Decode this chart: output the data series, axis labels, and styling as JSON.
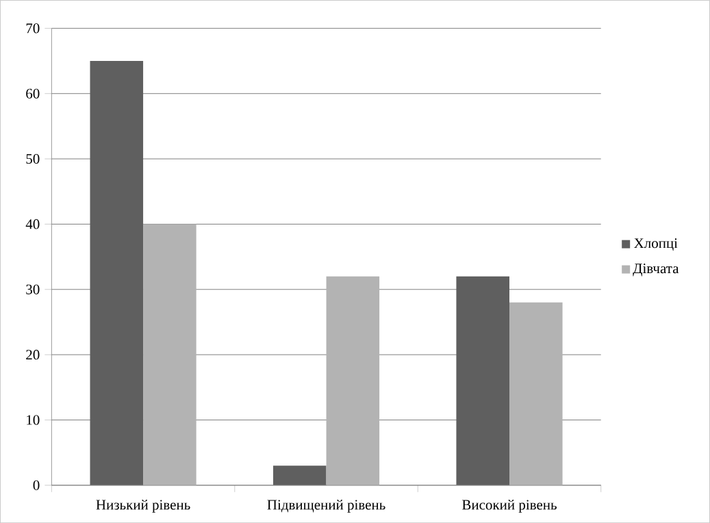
{
  "chart_data": {
    "type": "bar",
    "categories": [
      "Низький рівень",
      "Підвищений рівень",
      "Високий рівень"
    ],
    "series": [
      {
        "name": "Хлопці",
        "color": "#5f5f5f",
        "values": [
          65,
          3,
          32
        ]
      },
      {
        "name": "Дівчата",
        "color": "#b3b3b3",
        "values": [
          40,
          32,
          28
        ]
      }
    ],
    "ylim": [
      0,
      70
    ],
    "yticks": [
      0,
      10,
      20,
      30,
      40,
      50,
      60,
      70
    ],
    "grid": "y",
    "legend": "right"
  }
}
